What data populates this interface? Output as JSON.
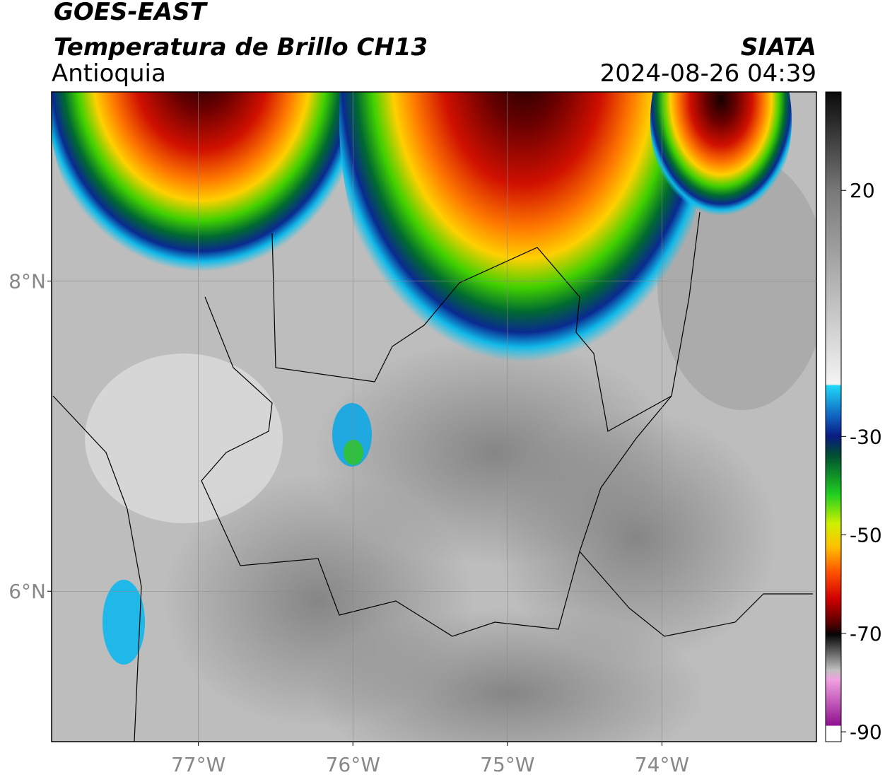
{
  "header": {
    "title": "GOES-EAST",
    "subtitle": "Temperatura de Brillo CH13",
    "region": "Antioquia",
    "source": "SIATA",
    "datetime": "2024-08-26 04:39"
  },
  "map": {
    "xlim": [
      -77.95,
      -73
    ],
    "ylim": [
      5.03,
      9.22
    ],
    "xticks": [
      {
        "value": -77,
        "label": "77°W"
      },
      {
        "value": -76,
        "label": "76°W"
      },
      {
        "value": -75,
        "label": "75°W"
      },
      {
        "value": -74,
        "label": "74°W"
      }
    ],
    "yticks": [
      {
        "value": 8,
        "label": "8°N"
      },
      {
        "value": 6,
        "label": "6°N"
      }
    ],
    "grid": true
  },
  "colorbar": {
    "lim": [
      -92,
      40
    ],
    "ticks": [
      20,
      -30,
      -50,
      -70,
      -90
    ]
  }
}
